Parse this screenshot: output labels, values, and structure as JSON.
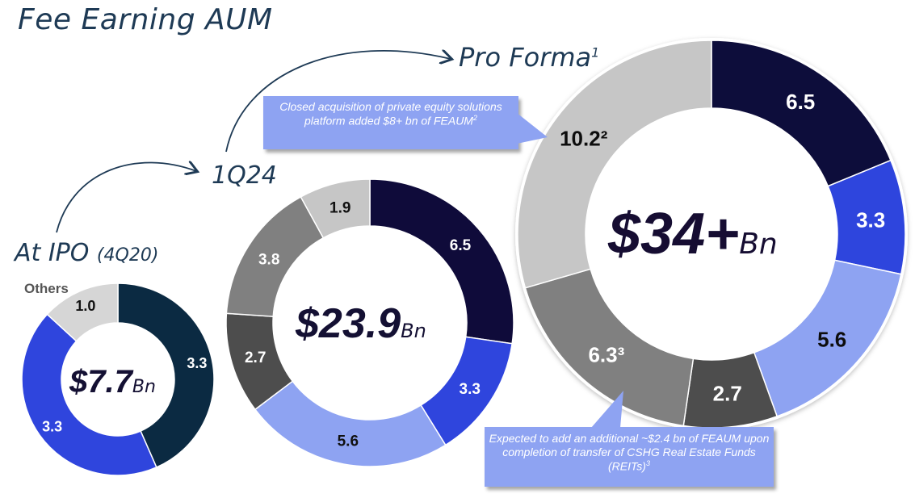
{
  "title": "Fee Earning AUM",
  "labels": {
    "ipo_main": "At IPO",
    "ipo_sub": "(4Q20)",
    "q124": "1Q24",
    "proforma_main": "Pro Forma",
    "proforma_sup": "1",
    "others": "Others"
  },
  "colors": {
    "dark_navy": "#0f0b3a",
    "ipo_navy": "#0b2a42",
    "royal_blue": "#2f45dd",
    "light_blue": "#8ea3f2",
    "dark_gray": "#4d4d4d",
    "mid_gray": "#808080",
    "light_gray": "#c6c6c6",
    "title_blue": "#1e3a55"
  },
  "callouts": {
    "top_text": "Closed acquisition of private equity solutions platform added $8+ bn of FEAUM",
    "top_sup": "2",
    "bottom_text": "Expected to add an additional ~$2.4 bn of FEAUM upon completion of transfer of CSHG Real Estate Funds (REITs)",
    "bottom_sup": "3"
  },
  "chart_data": [
    {
      "type": "donut",
      "title": "At IPO (4Q20)",
      "center_value": "$7.7",
      "center_unit": "Bn",
      "segments": [
        {
          "value": 3.3,
          "label": "3.3",
          "color": "#0b2a42"
        },
        {
          "value": 3.3,
          "label": "3.3",
          "color": "#2f45dd"
        },
        {
          "value": 1.0,
          "label": "1.0",
          "color": "#d6d6d6"
        }
      ]
    },
    {
      "type": "donut",
      "title": "1Q24",
      "center_value": "$23.9",
      "center_unit": "Bn",
      "segments": [
        {
          "value": 6.5,
          "label": "6.5",
          "color": "#0f0b3a"
        },
        {
          "value": 3.3,
          "label": "3.3",
          "color": "#2f45dd"
        },
        {
          "value": 5.6,
          "label": "5.6",
          "color": "#8ea3f2"
        },
        {
          "value": 2.7,
          "label": "2.7",
          "color": "#4d4d4d"
        },
        {
          "value": 3.8,
          "label": "3.8",
          "color": "#808080"
        },
        {
          "value": 1.9,
          "label": "1.9",
          "color": "#c6c6c6"
        }
      ]
    },
    {
      "type": "donut",
      "title": "Pro Forma",
      "center_value": "$34+",
      "center_unit": "Bn",
      "segments": [
        {
          "value": 6.5,
          "label": "6.5",
          "color": "#0f0b3a"
        },
        {
          "value": 3.3,
          "label": "3.3",
          "color": "#2f45dd"
        },
        {
          "value": 5.6,
          "label": "5.6",
          "color": "#8ea3f2"
        },
        {
          "value": 2.7,
          "label": "2.7",
          "color": "#4d4d4d"
        },
        {
          "value": 6.3,
          "label": "6.3³",
          "color": "#808080"
        },
        {
          "value": 10.2,
          "label": "10.2²",
          "color": "#c6c6c6"
        }
      ]
    }
  ]
}
